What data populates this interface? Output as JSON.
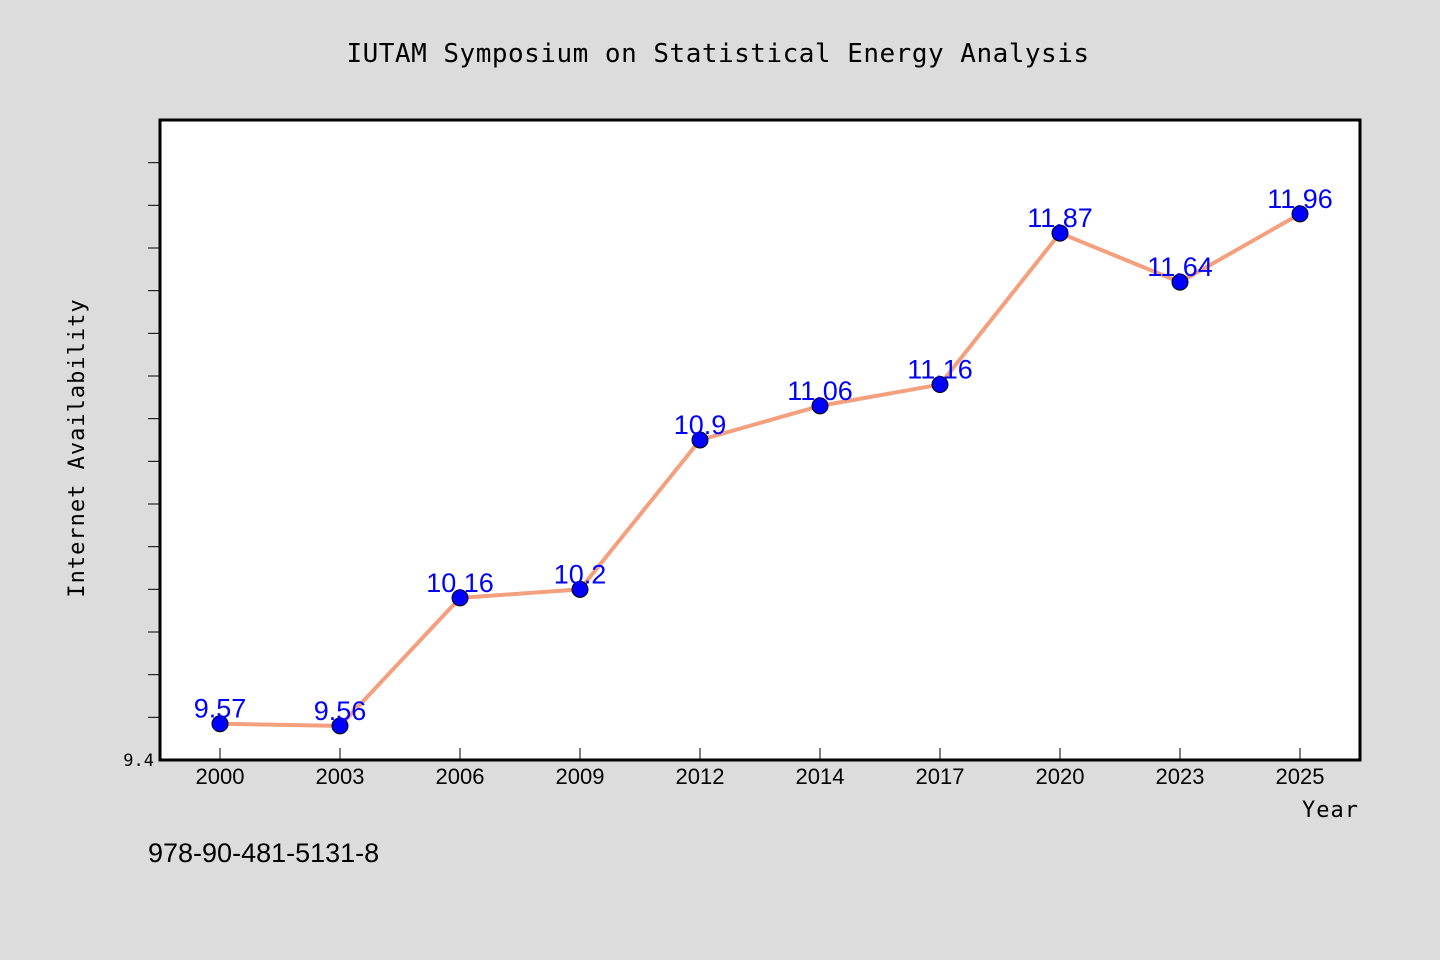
{
  "chart_data": {
    "type": "line",
    "title": "IUTAM Symposium on Statistical Energy Analysis",
    "xlabel": "Year",
    "ylabel": "Internet Availability",
    "categories": [
      "2000",
      "2003",
      "2006",
      "2009",
      "2012",
      "2014",
      "2017",
      "2020",
      "2023",
      "2025"
    ],
    "series": [
      {
        "values": [
          9.57,
          9.56,
          10.16,
          10.2,
          10.9,
          11.06,
          11.16,
          11.87,
          11.64,
          11.96
        ]
      }
    ],
    "data_labels": [
      "9.57",
      "9.56",
      "10.16",
      "10.2",
      "10.9",
      "11.06",
      "11.16",
      "11.87",
      "11.64",
      "11.96"
    ],
    "y_tick_labels": [
      "9.4"
    ],
    "ylim": [
      9.4,
      12.4
    ],
    "y_minor_tick_step": 0.2,
    "grid": false,
    "colors": {
      "line": "#f4a07e",
      "marker": "#0000ff",
      "data_label": "#0000ff",
      "plot_background": "#ffffff",
      "page_background": "#dcdcdc"
    }
  },
  "footer": {
    "isbn": "978-90-481-5131-8"
  }
}
